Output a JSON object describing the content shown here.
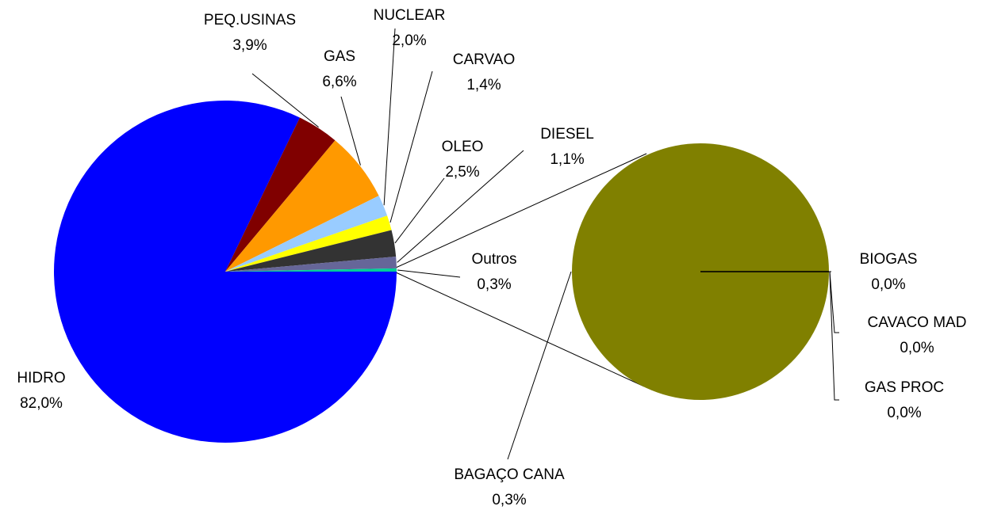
{
  "chart_data": [
    {
      "type": "pie",
      "categories": [
        "HIDRO",
        "PEQ.USINAS",
        "GAS",
        "NUCLEAR",
        "CARVAO",
        "OLEO",
        "DIESEL",
        "Outros"
      ],
      "values": [
        82.0,
        3.9,
        6.6,
        2.0,
        1.4,
        2.5,
        1.1,
        0.3
      ],
      "value_labels": [
        "82,0%",
        "3,9%",
        "6,6%",
        "2,0%",
        "1,4%",
        "2,5%",
        "1,1%",
        "0,3%"
      ],
      "colors": [
        "#0000ff",
        "#800000",
        "#ff9900",
        "#99ccff",
        "#ffff00",
        "#333333",
        "#666699",
        "#00cc99"
      ]
    },
    {
      "type": "pie",
      "categories": [
        "BAGAÇO CANA",
        "BIOGAS",
        "CAVACO MAD",
        "GAS PROC"
      ],
      "values": [
        0.3,
        0.0,
        0.0,
        0.0
      ],
      "value_labels": [
        "0,3%",
        "0,0%",
        "0,0%",
        "0,0%"
      ],
      "colors": [
        "#808000",
        "#000000",
        "#000000",
        "#000000"
      ]
    }
  ]
}
